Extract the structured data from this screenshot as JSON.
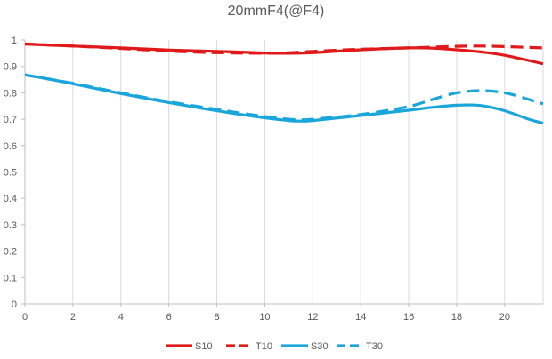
{
  "chart_data": {
    "type": "line",
    "title": "20mmF4(@F4)",
    "xlabel": "",
    "ylabel": "",
    "xlim": [
      0,
      21.6
    ],
    "ylim": [
      0,
      1
    ],
    "x_ticks": [
      "0",
      "2",
      "4",
      "6",
      "8",
      "10",
      "12",
      "14",
      "16",
      "18",
      "20"
    ],
    "y_ticks": [
      "0",
      "0.1",
      "0.2",
      "0.3",
      "0.4",
      "0.5",
      "0.6",
      "0.7",
      "0.8",
      "0.9",
      "1"
    ],
    "grid": "vertical",
    "legend_position": "bottom",
    "series": [
      {
        "name": "S10",
        "color": "#e0191b",
        "dash": "solid",
        "x": [
          0,
          2,
          4,
          6,
          8,
          10,
          11,
          12,
          14,
          16,
          17,
          18,
          19,
          20,
          21.6
        ],
        "y": [
          0.985,
          0.977,
          0.97,
          0.962,
          0.957,
          0.951,
          0.95,
          0.952,
          0.963,
          0.97,
          0.969,
          0.963,
          0.955,
          0.942,
          0.91
        ]
      },
      {
        "name": "T10",
        "color": "#e0191b",
        "dash": "dashed",
        "x": [
          0,
          2,
          4,
          6,
          8,
          10,
          11,
          12,
          14,
          16,
          18,
          19,
          20,
          21.6
        ],
        "y": [
          0.985,
          0.977,
          0.968,
          0.958,
          0.952,
          0.95,
          0.952,
          0.957,
          0.965,
          0.97,
          0.976,
          0.977,
          0.975,
          0.97
        ]
      },
      {
        "name": "S30",
        "color": "#1aa6db",
        "dash": "solid",
        "x": [
          0,
          1,
          2,
          4,
          6,
          8,
          10,
          11,
          11.5,
          12,
          14,
          16,
          17,
          18,
          19,
          20,
          21,
          21.6
        ],
        "y": [
          0.868,
          0.852,
          0.834,
          0.797,
          0.763,
          0.732,
          0.705,
          0.695,
          0.693,
          0.695,
          0.714,
          0.734,
          0.745,
          0.753,
          0.752,
          0.732,
          0.7,
          0.685
        ]
      },
      {
        "name": "T30",
        "color": "#1aa6db",
        "dash": "dashed",
        "x": [
          0,
          1,
          2,
          4,
          6,
          8,
          10,
          11,
          11.5,
          12,
          14,
          16,
          17,
          18,
          19,
          20,
          21,
          21.6
        ],
        "y": [
          0.868,
          0.852,
          0.836,
          0.8,
          0.766,
          0.737,
          0.71,
          0.7,
          0.698,
          0.7,
          0.718,
          0.748,
          0.775,
          0.8,
          0.808,
          0.8,
          0.775,
          0.758
        ]
      }
    ]
  }
}
